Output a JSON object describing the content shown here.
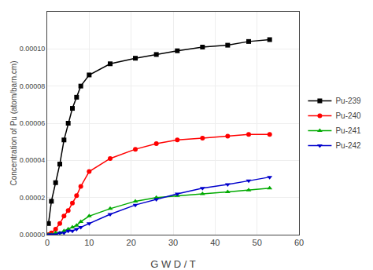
{
  "chart_data": {
    "type": "line",
    "xlabel": "G W D / T",
    "ylabel": "Concentration of Pu (atom/barn.cm)",
    "x": [
      0.3,
      1,
      2,
      3,
      4,
      5,
      6,
      7,
      8,
      10,
      15,
      21,
      26,
      31,
      37,
      43,
      48,
      53
    ],
    "series": [
      {
        "name": "Pu-239",
        "color": "#000000",
        "marker": "square",
        "values": [
          6e-06,
          1.8e-05,
          2.8e-05,
          3.8e-05,
          5.1e-05,
          6e-05,
          6.8e-05,
          7.4e-05,
          8e-05,
          8.6e-05,
          9.2e-05,
          9.5e-05,
          9.7e-05,
          9.9e-05,
          0.000101,
          0.000102,
          0.000104,
          0.000105
        ]
      },
      {
        "name": "Pu-240",
        "color": "#ff0000",
        "marker": "circle",
        "values": [
          0.0,
          1e-06,
          3e-06,
          6e-06,
          1e-05,
          1.3e-05,
          1.7e-05,
          2.1e-05,
          2.6e-05,
          3.4e-05,
          4.1e-05,
          4.6e-05,
          4.9e-05,
          5.1e-05,
          5.2e-05,
          5.3e-05,
          5.4e-05,
          5.4e-05
        ]
      },
      {
        "name": "Pu-241",
        "color": "#00aa00",
        "marker": "triangle-up",
        "values": [
          0.0,
          0.0,
          1e-06,
          1e-06,
          2e-06,
          3e-06,
          4e-06,
          5e-06,
          7e-06,
          1e-05,
          1.4e-05,
          1.8e-05,
          2e-05,
          2.1e-05,
          2.2e-05,
          2.3e-05,
          2.4e-05,
          2.5e-05
        ]
      },
      {
        "name": "Pu-242",
        "color": "#0000cc",
        "marker": "triangle-down",
        "values": [
          0.0,
          0.0,
          0.0,
          1e-06,
          1e-06,
          2e-06,
          2e-06,
          3e-06,
          4e-06,
          6e-06,
          1.1e-05,
          1.6e-05,
          1.9e-05,
          2.2e-05,
          2.5e-05,
          2.7e-05,
          2.9e-05,
          3.1e-05
        ]
      }
    ],
    "xlim": [
      0,
      60
    ],
    "xticks": [
      0,
      10,
      20,
      30,
      40,
      50,
      60
    ],
    "ylim": [
      0,
      0.00012
    ],
    "yticks": [
      {
        "value": 0.0,
        "label": "0.00000"
      },
      {
        "value": 2e-05,
        "label": "0.00002"
      },
      {
        "value": 4e-05,
        "label": "0.00004"
      },
      {
        "value": 6e-05,
        "label": "0.00006"
      },
      {
        "value": 8e-05,
        "label": "0.00008"
      },
      {
        "value": 0.0001,
        "label": "0.00010"
      }
    ],
    "legend": "right"
  }
}
